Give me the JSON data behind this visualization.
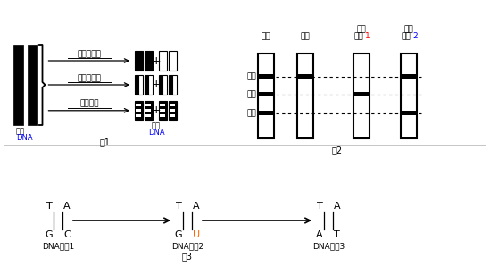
{
  "bg_color": "#ffffff",
  "fig1_label": "图1",
  "fig2_label": "图2",
  "fig3_label": "图3",
  "parent_dna_label_1": "亲代",
  "parent_dna_label_2": "DNA",
  "child_dna_label_1": "子代",
  "child_dna_label_2": "DNA",
  "rep1_label": "全保留复制",
  "rep2_label": "半保留复制",
  "rep3_label": "分散复制",
  "col_labels": [
    "对照",
    "亲代",
    "实验\n结果",
    "实验\n结果"
  ],
  "col_numbers": [
    "",
    "",
    "1",
    "2"
  ],
  "row_labels": [
    "轻带",
    "中带",
    "重带"
  ],
  "dna1_label": "DNA片段1",
  "dna2_label": "DNA片段2",
  "dna3_label": "DNA片段3",
  "blue": "#0000ff",
  "orange": "#ff6600",
  "red": "#ff0000",
  "black": "#000000",
  "white": "#ffffff",
  "gray": "#888888"
}
